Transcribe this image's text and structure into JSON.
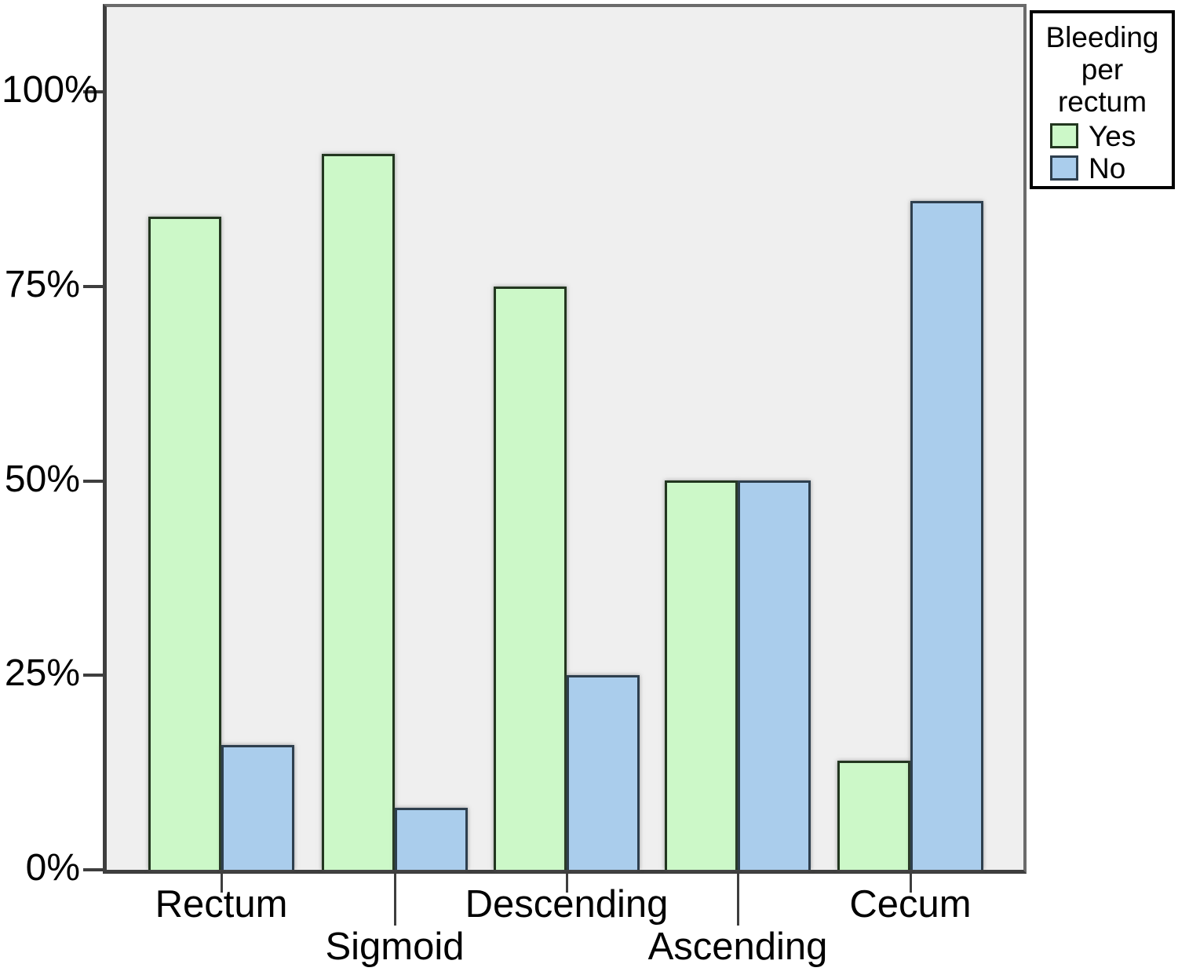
{
  "chart_data": {
    "type": "bar",
    "title": "",
    "xlabel": "",
    "ylabel": "",
    "categories": [
      "Rectum",
      "Sigmoid",
      "Descending",
      "Ascending",
      "Cecum"
    ],
    "series": [
      {
        "name": "Yes",
        "color": "#ccf8c8",
        "border_color": "#22361f",
        "values": [
          84,
          92,
          75,
          50,
          14
        ]
      },
      {
        "name": "No",
        "color": "#aacdec",
        "border_color": "#2e3f4e",
        "values": [
          16,
          8,
          25,
          50,
          86
        ]
      }
    ],
    "y_ticks": [
      {
        "value": 0,
        "label": "0%"
      },
      {
        "value": 25,
        "label": "25%"
      },
      {
        "value": 50,
        "label": "50%"
      },
      {
        "value": 75,
        "label": "75%"
      },
      {
        "value": 100,
        "label": "100%"
      }
    ],
    "ylim": [
      0,
      100
    ],
    "grid": false,
    "plot_background": "#efefef",
    "legend": {
      "position": "top-right",
      "title_lines": [
        "Bleeding",
        "per",
        "rectum"
      ],
      "entries": [
        "Yes",
        "No"
      ]
    }
  }
}
